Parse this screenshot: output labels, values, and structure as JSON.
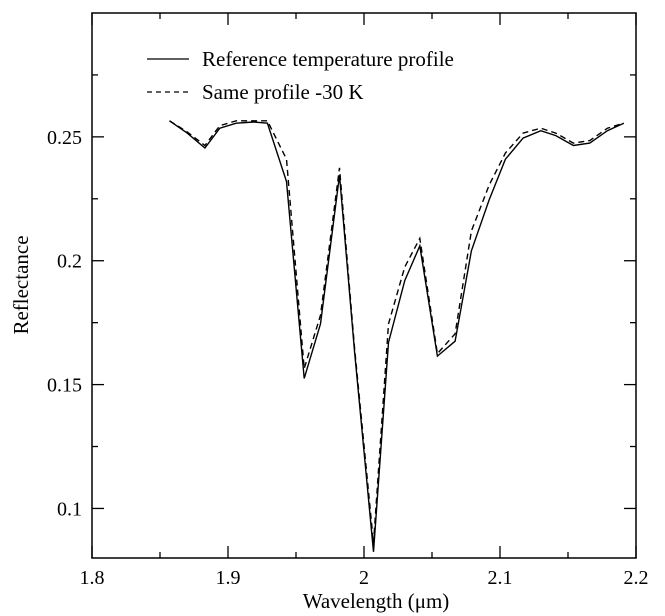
{
  "chart_data": {
    "type": "line",
    "title": "",
    "xlabel": "Wavelength (μm)",
    "ylabel": "Reflectance",
    "xlim": [
      1.8,
      2.2
    ],
    "ylim": [
      0.08,
      0.3
    ],
    "grid": false,
    "legend_position": "top-left",
    "x_ticks_major": [
      1.8,
      1.9,
      2.0,
      2.1,
      2.2
    ],
    "x_tick_labels": [
      "1.8",
      "1.9",
      "2",
      "2.1",
      "2.2"
    ],
    "x_ticks_minor": [
      1.85,
      1.95,
      2.05,
      2.15
    ],
    "y_ticks_major": [
      0.1,
      0.15,
      0.2,
      0.25
    ],
    "y_tick_labels": [
      "0.1",
      "0.15",
      "0.2",
      "0.25"
    ],
    "y_ticks_minor": [
      0.125,
      0.175,
      0.225,
      0.275
    ],
    "series": [
      {
        "name": "Reference temperature profile",
        "style": "solid",
        "color": "#000000",
        "x": [
          1.857,
          1.87,
          1.883,
          1.894,
          1.906,
          1.919,
          1.929,
          1.943,
          1.956,
          1.968,
          1.982,
          1.993,
          2.007,
          2.018,
          2.03,
          2.041,
          2.054,
          2.067,
          2.079,
          2.092,
          2.104,
          2.117,
          2.13,
          2.141,
          2.154,
          2.166,
          2.179,
          2.191
        ],
        "y": [
          0.2565,
          0.2515,
          0.2455,
          0.2535,
          0.2555,
          0.256,
          0.2555,
          0.232,
          0.1525,
          0.1745,
          0.2345,
          0.1635,
          0.0825,
          0.167,
          0.192,
          0.206,
          0.1615,
          0.1675,
          0.204,
          0.2245,
          0.241,
          0.2495,
          0.2525,
          0.2505,
          0.2465,
          0.2475,
          0.2525,
          0.2555
        ]
      },
      {
        "name": "Same profile -30 K",
        "style": "dashed",
        "color": "#000000",
        "x": [
          1.857,
          1.87,
          1.883,
          1.894,
          1.906,
          1.919,
          1.929,
          1.943,
          1.956,
          1.968,
          1.982,
          1.993,
          2.007,
          2.018,
          2.03,
          2.041,
          2.054,
          2.067,
          2.079,
          2.092,
          2.104,
          2.117,
          2.13,
          2.141,
          2.154,
          2.166,
          2.179,
          2.191
        ],
        "y": [
          0.2565,
          0.252,
          0.2465,
          0.2545,
          0.2565,
          0.2565,
          0.2565,
          0.241,
          0.1565,
          0.178,
          0.2375,
          0.165,
          0.086,
          0.1745,
          0.1975,
          0.209,
          0.1625,
          0.1705,
          0.212,
          0.2305,
          0.2435,
          0.2515,
          0.2535,
          0.2515,
          0.2475,
          0.2485,
          0.2535,
          0.2555
        ]
      }
    ]
  }
}
